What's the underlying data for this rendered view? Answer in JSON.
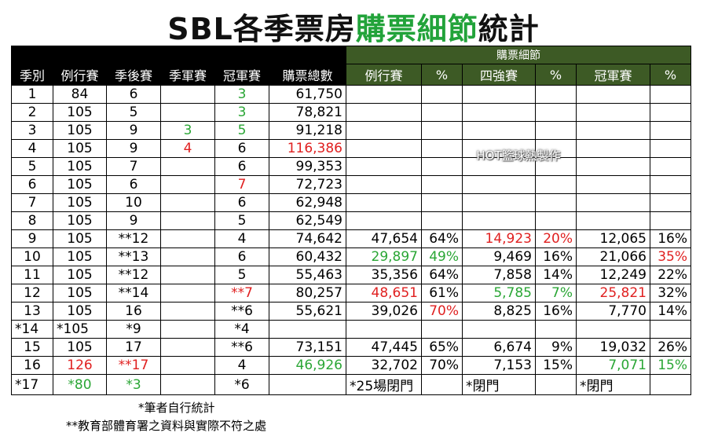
{
  "title": {
    "prefix": "SBL各季票房",
    "highlight": "購票細節",
    "suffix": "統計"
  },
  "group_header": "購票細節",
  "columns": [
    "季別",
    "例行賽",
    "季後賽",
    "季軍賽",
    "冠軍賽",
    "購票總數",
    "例行賽",
    "%",
    "四強賽",
    "%",
    "冠軍賽",
    "%"
  ],
  "rows": [
    [
      "1",
      "84",
      "6",
      "",
      "3",
      "61,750",
      "",
      "",
      "",
      "",
      "",
      ""
    ],
    [
      "2",
      "105",
      "5",
      "",
      "3",
      "78,821",
      "",
      "",
      "",
      "",
      "",
      ""
    ],
    [
      "3",
      "105",
      "9",
      "3",
      "5",
      "91,218",
      "",
      "",
      "",
      "",
      "",
      ""
    ],
    [
      "4",
      "105",
      "9",
      "4",
      "6",
      "116,386",
      "",
      "",
      "",
      "",
      "",
      ""
    ],
    [
      "5",
      "105",
      "7",
      "",
      "6",
      "99,353",
      "",
      "",
      "",
      "",
      "",
      ""
    ],
    [
      "6",
      "105",
      "6",
      "",
      "7",
      "72,723",
      "",
      "",
      "",
      "",
      "",
      ""
    ],
    [
      "7",
      "105",
      "10",
      "",
      "6",
      "62,948",
      "",
      "",
      "",
      "",
      "",
      ""
    ],
    [
      "8",
      "105",
      "9",
      "",
      "5",
      "62,549",
      "",
      "",
      "",
      "",
      "",
      ""
    ],
    [
      "9",
      "105",
      "**12",
      "",
      "4",
      "74,642",
      "47,654",
      "64%",
      "14,923",
      "20%",
      "12,065",
      "16%"
    ],
    [
      "10",
      "105",
      "**13",
      "",
      "6",
      "60,432",
      "29,897",
      "49%",
      "9,469",
      "16%",
      "21,066",
      "35%"
    ],
    [
      "11",
      "105",
      "**12",
      "",
      "5",
      "55,463",
      "35,356",
      "64%",
      "7,858",
      "14%",
      "12,249",
      "22%"
    ],
    [
      "12",
      "105",
      "**14",
      "",
      "**7",
      "80,257",
      "48,651",
      "61%",
      "5,785",
      "7%",
      "25,821",
      "32%"
    ],
    [
      "13",
      "105",
      "16",
      "",
      "**6",
      "55,621",
      "39,026",
      "70%",
      "8,825",
      "16%",
      "7,770",
      "14%"
    ],
    [
      "*14",
      "*105",
      "*9",
      "",
      "*4",
      "",
      "",
      "",
      "",
      "",
      "",
      ""
    ],
    [
      "15",
      "105",
      "17",
      "",
      "**6",
      "73,151",
      "47,445",
      "65%",
      "6,674",
      "9%",
      "19,032",
      "26%"
    ],
    [
      "16",
      "126",
      "**17",
      "",
      "4",
      "46,926",
      "32,702",
      "70%",
      "7,153",
      "15%",
      "7,071",
      "15%"
    ],
    [
      "*17",
      "*80",
      "*3",
      "",
      "*6",
      "",
      "*25場閉門",
      "",
      "*閉門",
      "",
      "*閉門",
      ""
    ]
  ],
  "cell_colors": {
    "0-4": "green",
    "1-4": "green",
    "2-3": "green",
    "2-4": "green",
    "3-3": "red",
    "3-5": "red",
    "5-4": "red",
    "8-8": "red",
    "8-9": "red",
    "9-6": "green",
    "9-7": "green",
    "9-11": "red",
    "11-4": "red",
    "11-6": "red",
    "11-8": "green",
    "11-9": "green",
    "11-10": "red",
    "12-7": "red",
    "15-1": "red",
    "15-2": "red",
    "15-5": "green",
    "15-10": "green",
    "15-11": "green",
    "16-1": "green",
    "16-2": "green"
  },
  "watermark": "HOT籃球熱製作",
  "notes": [
    "*筆者自行統計",
    "**教育部體育署之資料與實際不符之處"
  ],
  "colors": {
    "red": "#e02020",
    "green": "#2aa635",
    "header_green": "#3d5a25",
    "header_black": "#000000"
  }
}
